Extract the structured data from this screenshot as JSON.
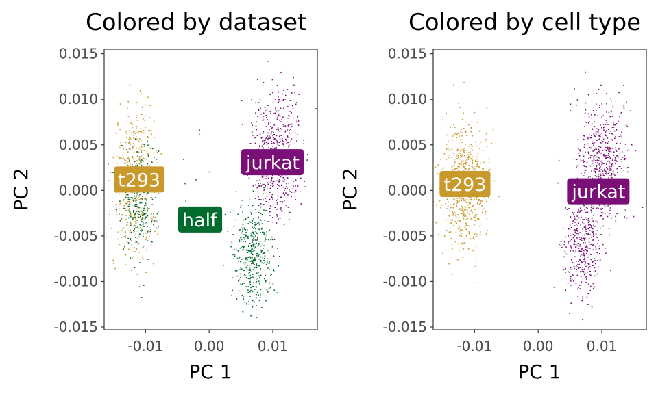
{
  "chart_data": [
    {
      "type": "scatter",
      "title": "Colored by dataset",
      "xlabel": "PC 1",
      "ylabel": "PC 2",
      "xlim": [
        -0.0165,
        0.017
      ],
      "ylim": [
        -0.0153,
        0.0155
      ],
      "x_ticks": [
        -0.01,
        0.0,
        0.01
      ],
      "x_tick_labels": [
        "-0.01",
        "0.00",
        "0.01"
      ],
      "y_ticks": [
        0.015,
        0.01,
        0.005,
        0.0,
        -0.005,
        -0.01,
        -0.015
      ],
      "y_tick_labels": [
        "0.015",
        "0.010",
        "0.005",
        "0.000",
        "-0.005",
        "-0.010",
        "-0.015"
      ],
      "grid": false,
      "series": [
        {
          "name": "t293",
          "color": "#c9992c",
          "clusters": [
            {
              "cx": -0.0115,
              "cy": 0.002,
              "sx": 0.0018,
              "sy": 0.0035,
              "n": 380
            },
            {
              "cx": -0.012,
              "cy": -0.004,
              "sx": 0.0015,
              "sy": 0.002,
              "n": 60
            }
          ]
        },
        {
          "name": "half",
          "color": "#006b2e",
          "clusters": [
            {
              "cx": -0.011,
              "cy": -0.001,
              "sx": 0.0014,
              "sy": 0.0032,
              "n": 300
            },
            {
              "cx": 0.007,
              "cy": -0.007,
              "sx": 0.0015,
              "sy": 0.0028,
              "n": 420
            },
            {
              "cx": -0.002,
              "cy": 0.002,
              "sx": 0.003,
              "sy": 0.003,
              "n": 8
            }
          ]
        },
        {
          "name": "jurkat",
          "color": "#7a0f78",
          "clusters": [
            {
              "cx": 0.0105,
              "cy": 0.004,
              "sx": 0.002,
              "sy": 0.0035,
              "n": 560
            }
          ]
        }
      ],
      "annotations": [
        {
          "text": "t293",
          "x": -0.011,
          "y": 0.0012,
          "color": "#c9992c"
        },
        {
          "text": "half",
          "x": -0.0015,
          "y": -0.0032,
          "color": "#006b2e"
        },
        {
          "text": "jurkat",
          "x": 0.01,
          "y": 0.0031,
          "color": "#7a0f78"
        }
      ]
    },
    {
      "type": "scatter",
      "title": "Colored by cell type",
      "xlabel": "PC 1",
      "ylabel": "PC 2",
      "xlim": [
        -0.0165,
        0.017
      ],
      "ylim": [
        -0.0153,
        0.0155
      ],
      "x_ticks": [
        -0.01,
        0.0,
        0.01
      ],
      "x_tick_labels": [
        "-0.01",
        "0.00",
        "0.01"
      ],
      "y_ticks": [
        0.015,
        0.01,
        0.005,
        0.0,
        -0.005,
        -0.01,
        -0.015
      ],
      "y_tick_labels": [
        "0.015",
        "0.010",
        "0.005",
        "0.000",
        "-0.005",
        "-0.010",
        "-0.015"
      ],
      "grid": false,
      "series": [
        {
          "name": "t293",
          "color": "#c9992c",
          "clusters": [
            {
              "cx": -0.0115,
              "cy": 0.0005,
              "sx": 0.0017,
              "sy": 0.0035,
              "n": 620
            }
          ]
        },
        {
          "name": "jurkat",
          "color": "#7a0f78",
          "clusters": [
            {
              "cx": 0.01,
              "cy": 0.003,
              "sx": 0.002,
              "sy": 0.0035,
              "n": 520
            },
            {
              "cx": 0.007,
              "cy": -0.006,
              "sx": 0.0015,
              "sy": 0.003,
              "n": 380
            }
          ]
        }
      ],
      "annotations": [
        {
          "text": "t293",
          "x": -0.0115,
          "y": 0.0007,
          "color": "#c9992c"
        },
        {
          "text": "jurkat",
          "x": 0.0095,
          "y": -0.0001,
          "color": "#7a0f78"
        }
      ]
    }
  ]
}
